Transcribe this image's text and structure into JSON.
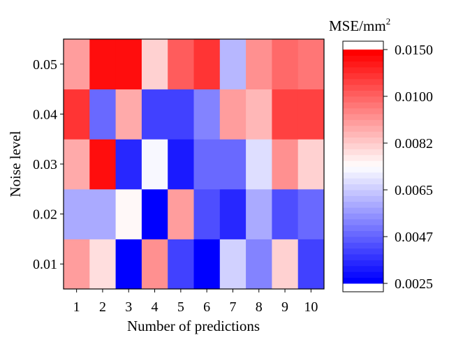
{
  "chart_data": {
    "type": "heatmap",
    "xlabel": "Number of predictions",
    "ylabel": "Noise level",
    "x_categories": [
      "1",
      "2",
      "3",
      "4",
      "5",
      "6",
      "7",
      "8",
      "9",
      "10"
    ],
    "y_categories": [
      "0.01",
      "0.02",
      "0.03",
      "0.04",
      "0.05"
    ],
    "values": [
      [
        0.009,
        0.0079,
        0.0025,
        0.0093,
        0.004,
        0.0025,
        0.0066,
        0.0053,
        0.0081,
        0.004
      ],
      [
        0.006,
        0.006,
        0.0075,
        0.0025,
        0.009,
        0.0044,
        0.0036,
        0.0059,
        0.0044,
        0.0047
      ],
      [
        0.0088,
        0.014,
        0.0036,
        0.0072,
        0.0033,
        0.0047,
        0.0047,
        0.0068,
        0.0093,
        0.0081
      ],
      [
        0.012,
        0.0047,
        0.0088,
        0.004,
        0.004,
        0.0053,
        0.009,
        0.0085,
        0.0115,
        0.0115
      ],
      [
        0.009,
        0.014,
        0.014,
        0.0081,
        0.0105,
        0.012,
        0.0062,
        0.0091,
        0.0099,
        0.0096
      ]
    ],
    "colorbar": {
      "title": "MSE/mm",
      "title_superscript": "2",
      "ticks": [
        0.0025,
        0.0047,
        0.0065,
        0.0082,
        0.01,
        0.015
      ],
      "tick_labels": [
        "0.0025",
        "0.0047",
        "0.0065",
        "0.0082",
        "0.0100",
        "0.0150"
      ],
      "levels": 40,
      "low_color": "#0000ff",
      "mid_color": "#ffffff",
      "high_color": "#ff0000"
    }
  }
}
